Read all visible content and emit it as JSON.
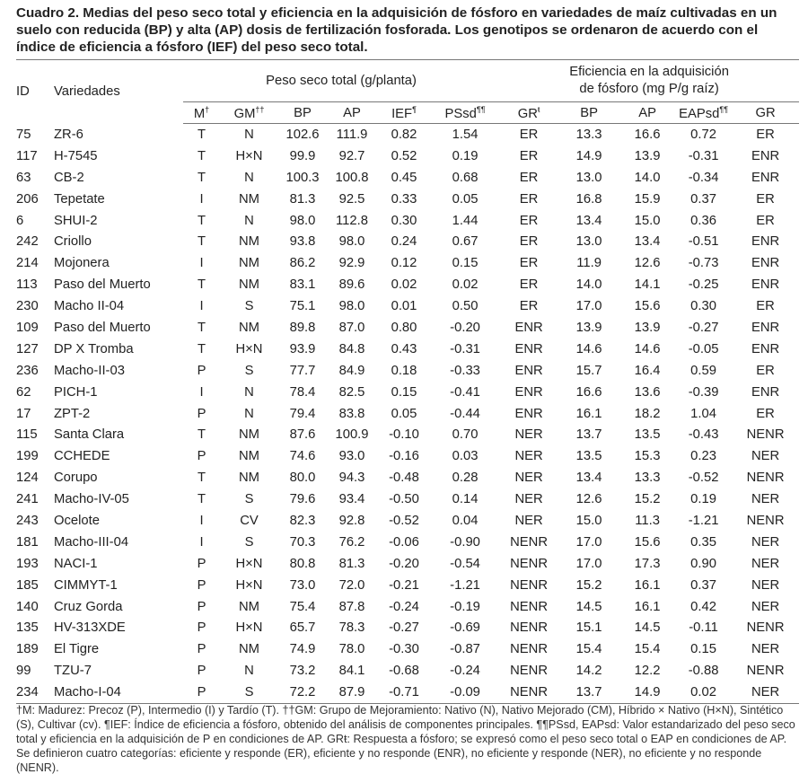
{
  "title": "Cuadro 2. Medias del peso seco total y eficiencia en la adquisición de fósforo en variedades de maíz cultivadas en un suelo con reducida (BP) y alta (AP) dosis de fertilización fosforada. Los genotipos se ordenaron de acuerdo con el índice de eficiencia a fósforo (IEF) del peso seco total.",
  "table": {
    "group_headers": {
      "id": "ID",
      "variety": "Variedades",
      "dry_weight": "Peso seco total (g/planta)",
      "efficiency": [
        "Eficiencia en la adquisición",
        "de fósforo (mg P/g raíz)"
      ]
    },
    "columns": [
      {
        "text": "M",
        "mark": "†"
      },
      {
        "text": "GM",
        "mark": "††"
      },
      {
        "text": "BP"
      },
      {
        "text": "AP"
      },
      {
        "text": "IEF",
        "mark": "¶"
      },
      {
        "text": "PSsd",
        "mark": "¶¶"
      },
      {
        "text": "GR",
        "mark": "ŧ"
      },
      {
        "text": "BP"
      },
      {
        "text": "AP"
      },
      {
        "text": "EAPsd",
        "mark": "¶¶"
      },
      {
        "text": "GR"
      }
    ],
    "rows": [
      [
        "75",
        "ZR-6",
        "T",
        "N",
        "102.6",
        "111.9",
        "0.82",
        "1.54",
        "ER",
        "13.3",
        "16.6",
        "0.72",
        "ER"
      ],
      [
        "117",
        "H-7545",
        "T",
        "H×N",
        "99.9",
        "92.7",
        "0.52",
        "0.19",
        "ER",
        "14.9",
        "13.9",
        "-0.31",
        "ENR"
      ],
      [
        "63",
        "CB-2",
        "T",
        "N",
        "100.3",
        "100.8",
        "0.45",
        "0.68",
        "ER",
        "13.0",
        "14.0",
        "-0.34",
        "ENR"
      ],
      [
        "206",
        "Tepetate",
        "I",
        "NM",
        "81.3",
        "92.5",
        "0.33",
        "0.05",
        "ER",
        "16.8",
        "15.9",
        "0.37",
        "ER"
      ],
      [
        "6",
        "SHUI-2",
        "T",
        "N",
        "98.0",
        "112.8",
        "0.30",
        "1.44",
        "ER",
        "13.4",
        "15.0",
        "0.36",
        "ER"
      ],
      [
        "242",
        "Criollo",
        "T",
        "NM",
        "93.8",
        "98.0",
        "0.24",
        "0.67",
        "ER",
        "13.0",
        "13.4",
        "-0.51",
        "ENR"
      ],
      [
        "214",
        "Mojonera",
        "I",
        "NM",
        "86.2",
        "92.9",
        "0.12",
        "0.15",
        "ER",
        "11.9",
        "12.6",
        "-0.73",
        "ENR"
      ],
      [
        "113",
        "Paso del Muerto",
        "T",
        "NM",
        "83.1",
        "89.6",
        "0.02",
        "0.02",
        "ER",
        "14.0",
        "14.1",
        "-0.25",
        "ENR"
      ],
      [
        "230",
        "Macho II-04",
        "I",
        "S",
        "75.1",
        "98.0",
        "0.01",
        "0.50",
        "ER",
        "17.0",
        "15.6",
        "0.30",
        "ER"
      ],
      [
        "109",
        "Paso del Muerto",
        "T",
        "NM",
        "89.8",
        "87.0",
        "0.80",
        "-0.20",
        "ENR",
        "13.9",
        "13.9",
        "-0.27",
        "ENR"
      ],
      [
        "127",
        "DP X Tromba",
        "T",
        "H×N",
        "93.9",
        "84.8",
        "0.43",
        "-0.31",
        "ENR",
        "14.6",
        "14.6",
        "-0.05",
        "ENR"
      ],
      [
        "236",
        "Macho-II-03",
        "P",
        "S",
        "77.7",
        "84.9",
        "0.18",
        "-0.33",
        "ENR",
        "15.7",
        "16.4",
        "0.59",
        "ER"
      ],
      [
        "62",
        "PICH-1",
        "I",
        "N",
        "78.4",
        "82.5",
        "0.15",
        "-0.41",
        "ENR",
        "16.6",
        "13.6",
        "-0.39",
        "ENR"
      ],
      [
        "17",
        "ZPT-2",
        "P",
        "N",
        "79.4",
        "83.8",
        "0.05",
        "-0.44",
        "ENR",
        "16.1",
        "18.2",
        "1.04",
        "ER"
      ],
      [
        "115",
        "Santa Clara",
        "T",
        "NM",
        "87.6",
        "100.9",
        "-0.10",
        "0.70",
        "NER",
        "13.7",
        "13.5",
        "-0.43",
        "NENR"
      ],
      [
        "199",
        "CCHEDE",
        "P",
        "NM",
        "74.6",
        "93.0",
        "-0.16",
        "0.03",
        "NER",
        "13.5",
        "15.3",
        "0.23",
        "NER"
      ],
      [
        "124",
        "Corupo",
        "T",
        "NM",
        "80.0",
        "94.3",
        "-0.48",
        "0.28",
        "NER",
        "13.4",
        "13.3",
        "-0.52",
        "NENR"
      ],
      [
        "241",
        "Macho-IV-05",
        "T",
        "S",
        "79.6",
        "93.4",
        "-0.50",
        "0.14",
        "NER",
        "12.6",
        "15.2",
        "0.19",
        "NER"
      ],
      [
        "243",
        "Ocelote",
        "I",
        "CV",
        "82.3",
        "92.8",
        "-0.52",
        "0.04",
        "NER",
        "15.0",
        "11.3",
        "-1.21",
        "NENR"
      ],
      [
        "181",
        "Macho-III-04",
        "I",
        "S",
        "70.3",
        "76.2",
        "-0.06",
        "-0.90",
        "NENR",
        "17.0",
        "15.6",
        "0.35",
        "NER"
      ],
      [
        "193",
        "NACI-1",
        "P",
        "H×N",
        "80.8",
        "81.3",
        "-0.20",
        "-0.54",
        "NENR",
        "17.0",
        "17.3",
        "0.90",
        "NER"
      ],
      [
        "185",
        "CIMMYT-1",
        "P",
        "H×N",
        "73.0",
        "72.0",
        "-0.21",
        "-1.21",
        "NENR",
        "15.2",
        "16.1",
        "0.37",
        "NER"
      ],
      [
        "140",
        "Cruz Gorda",
        "P",
        "NM",
        "75.4",
        "87.8",
        "-0.24",
        "-0.19",
        "NENR",
        "14.5",
        "16.1",
        "0.42",
        "NER"
      ],
      [
        "135",
        "HV-313XDE",
        "P",
        "H×N",
        "65.7",
        "78.3",
        "-0.27",
        "-0.69",
        "NENR",
        "15.1",
        "14.5",
        "-0.11",
        "NENR"
      ],
      [
        "189",
        "El Tigre",
        "P",
        "NM",
        "74.9",
        "78.0",
        "-0.30",
        "-0.87",
        "NENR",
        "15.4",
        "15.4",
        "0.15",
        "NER"
      ],
      [
        "99",
        "TZU-7",
        "P",
        "N",
        "73.2",
        "84.1",
        "-0.68",
        "-0.24",
        "NENR",
        "14.2",
        "12.2",
        "-0.88",
        "NENR"
      ],
      [
        "234",
        "Macho-I-04",
        "P",
        "S",
        "72.2",
        "87.9",
        "-0.71",
        "-0.09",
        "NENR",
        "13.7",
        "14.9",
        "0.02",
        "NER"
      ]
    ]
  },
  "footnote": "†M: Madurez: Precoz (P), Intermedio (I) y Tardío (T). ††GM: Grupo de Mejoramiento: Nativo (N), Nativo Mejorado (CM), Híbrido × Nativo (H×N), Sintético (S), Cultivar (cv). ¶IEF: Índice de eficiencia a fósforo, obtenido del análisis de componentes principales. ¶¶PSsd, EAPsd: Valor estandarizado del peso seco total y eficiencia en la adquisición de P en condiciones de AP. GRŧ: Respuesta a fósforo; se expresó como el peso seco total o EAP en condiciones de AP. Se definieron cuatro categorías: eficiente y responde (ER), eficiente y no responde (ENR), no eficiente y responde (NER), no eficiente y no responde (NENR)."
}
